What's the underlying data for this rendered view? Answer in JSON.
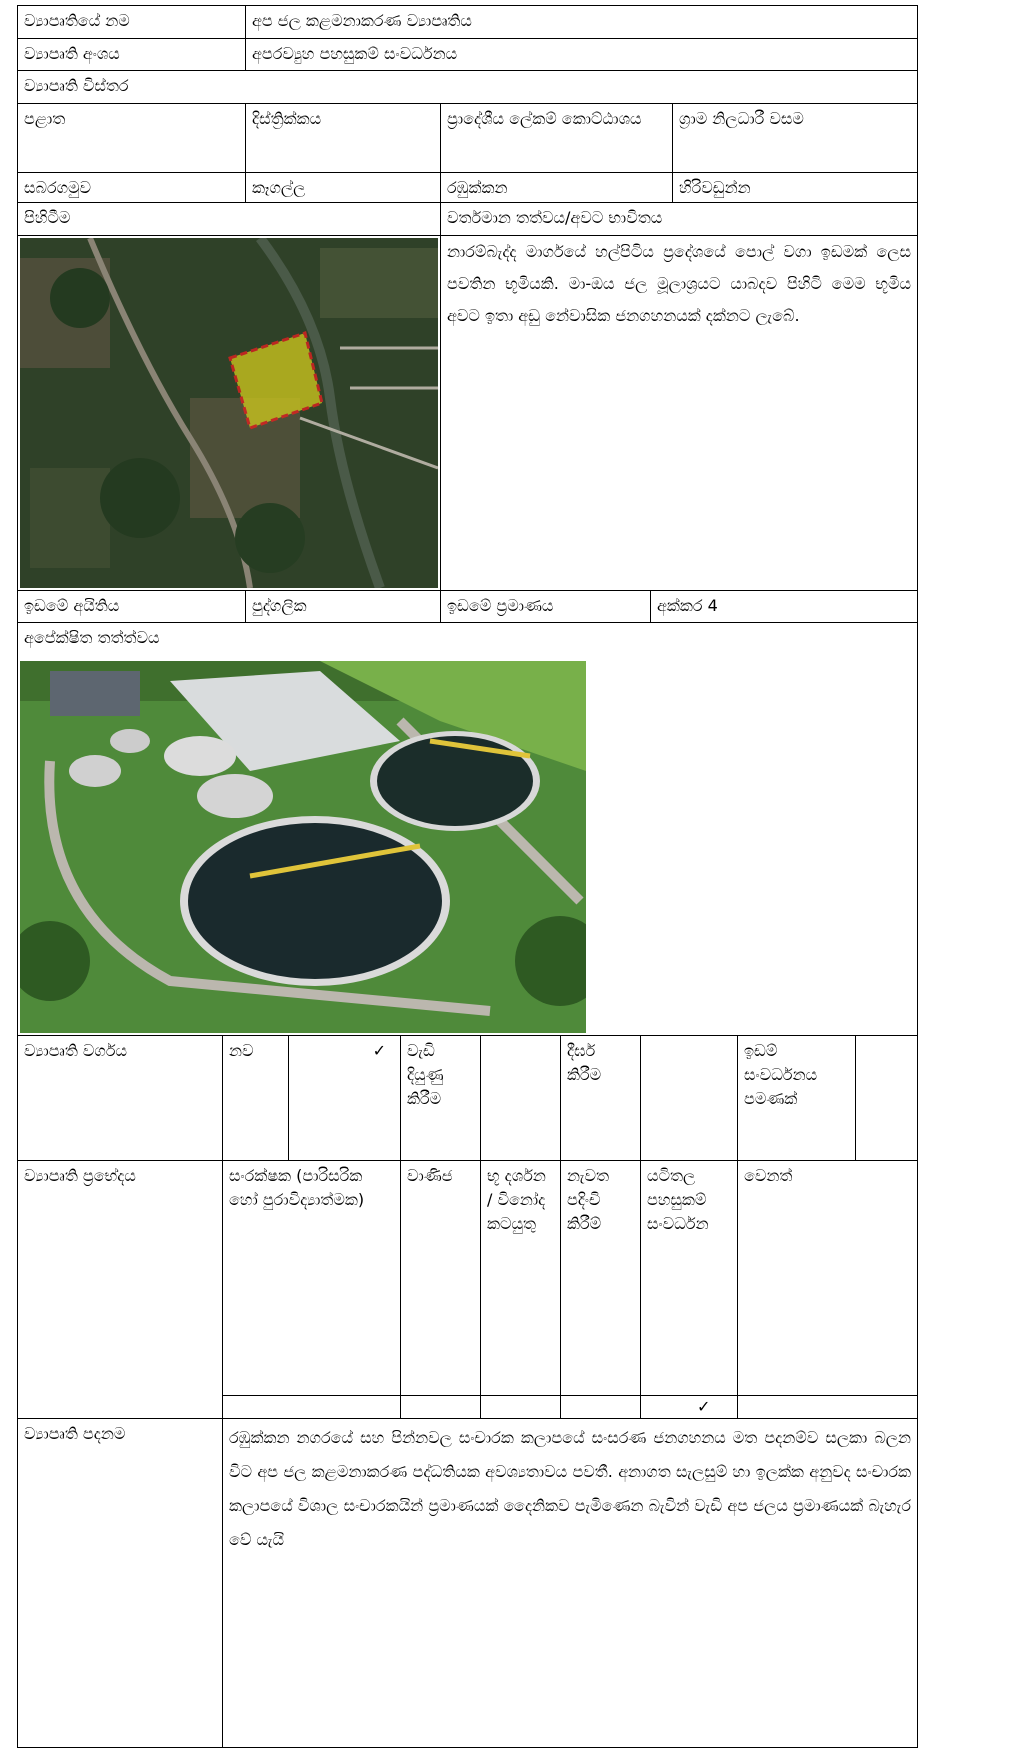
{
  "table": {
    "rows": [
      [
        "ව්‍යාපෘතියේ නම",
        "අප ජල කළමනාකරණ ව්‍යාපෘතිය"
      ],
      [
        "ව්‍යාපෘති අංශය",
        "අපරව්‍යුහ පහසුකම් සංවර්ධනය"
      ],
      [
        "ව්‍යාපෘති විස්තර"
      ],
      [
        "පළාත",
        "දිස්ත්‍රික්කය",
        "ප්‍රාදේශීය ලේකම් කොට්ඨාශය",
        "ග්‍රාම නිලධාරී වසම"
      ],
      [
        "සබරගමුව",
        "කෑගල්ල",
        "රඹුක්කන",
        "හිරිවඩුන්න"
      ],
      [
        "පිහිටීම",
        "වර්තමාන තත්වය/අවට භාවිතය"
      ],
      [
        "නාරම්බැද්ද මාර්ගයේ හල්පිටිය ප්‍රදේශයේ පොල් වගා ඉඩමක් ලෙස පවතින භූමියකි. මා-ඔය ජල මූලාශ්‍රයට යාබදව පිහිටි මෙම භූමිය අවට ඉතා අඩු නේවාසික ජනගහනයක් දක්නට ලැබේ."
      ],
      [
        "ඉඩමේ අයිතිය",
        "පුද්ගලික",
        "ඉඩමේ ප්‍රමාණය",
        "අක්කර 4"
      ],
      [
        "අපේක්ෂිත තත්ත්වය"
      ],
      [
        "ව්‍යාපෘති වර්ගය",
        "නව",
        "✓",
        "වැඩි දියුණු කිරීම",
        "දීර්ඝ කිරීම",
        "ඉඩම් සංවර්ධනය පමණක්"
      ],
      [
        "ව්‍යාපෘති ප්‍රභේදය",
        "සංරක්ෂක (පාරිසරික හෝ පුරාවිද්‍යාත්මක)",
        "වාණිජ",
        "භූ දර්ශන / විනෝද කටයුතු",
        "නැවත පදිංචි කිරීම්",
        "යටිතල පහසුකම් සංවර්ධන",
        "වෙනත්",
        "✓"
      ],
      [
        "ව්‍යාපෘති පදනම",
        "රඹුක්කන නගරයේ සහ පින්නවල සංචාරක කලාපයේ සංසරණ ජනගහනය මත පදනම්ව සලකා බලන විට අප ජල කළමනාකරණ පද්ධතියක අවශ්‍යතාවය පවතී. අනාගත සැලසුම් හා ඉලක්ක අනුවද සංචාරක කලාපයේ විශාල සංචාරකයින් ප්‍රමාණයක් දෛනිකව පැමිණෙන බැවින් වැඩි අප ජලය ප්‍රමාණයක් බැහැර වේ යැයි"
      ]
    ]
  }
}
